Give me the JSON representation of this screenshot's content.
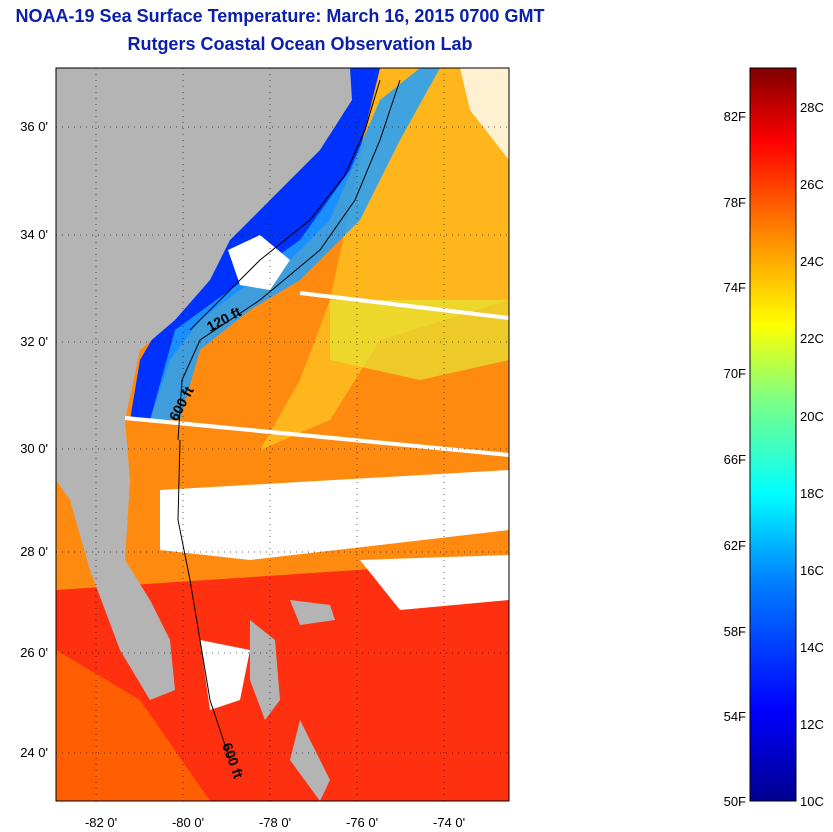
{
  "header": {
    "title": "NOAA-19 Sea Surface Temperature:  March 16, 2015 0700 GMT",
    "subtitle": "Rutgers Coastal Ocean Observation Lab"
  },
  "map": {
    "lat_ticks": [
      "36 0'",
      "34 0'",
      "32 0'",
      "30 0'",
      "28 0'",
      "26 0'",
      "24 0'"
    ],
    "lon_ticks": [
      "-82 0'",
      "-80 0'",
      "-78 0'",
      "-76 0'",
      "-74 0'"
    ],
    "contour_labels": [
      "120 ft",
      "600 ft",
      "600 ft"
    ],
    "colors": {
      "land": "#b4b4b4",
      "cloud": "#ffffff"
    }
  },
  "colorbar": {
    "f_labels": [
      "82F",
      "78F",
      "74F",
      "70F",
      "66F",
      "62F",
      "58F",
      "54F",
      "50F"
    ],
    "c_labels": [
      "28C",
      "26C",
      "24C",
      "22C",
      "20C",
      "18C",
      "16C",
      "14C",
      "12C",
      "10C"
    ],
    "colors": [
      "#00008f",
      "#0000ff",
      "#0080ff",
      "#00ffff",
      "#80ff80",
      "#ffff00",
      "#ff8000",
      "#ff0000",
      "#800000"
    ]
  }
}
